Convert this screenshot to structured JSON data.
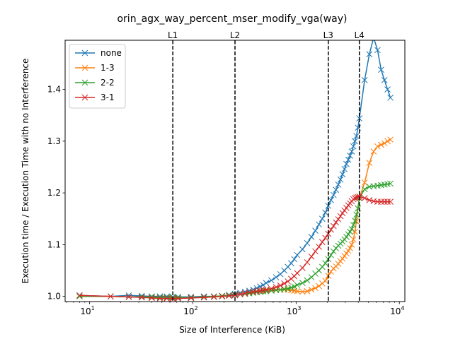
{
  "chart_data": {
    "type": "line",
    "title": "orin_agx_way_percent_mser_modify_vga(way)",
    "xlabel": "Size of Interference (KiB)",
    "ylabel": "Execution time / Execution Time with no Interference",
    "xscale": "log",
    "xlim": [
      5.8,
      11300
    ],
    "ylim": [
      0.99,
      1.495
    ],
    "x_major_ticks": [
      {
        "value": 10,
        "base": "10",
        "exp": "1"
      },
      {
        "value": 100,
        "base": "10",
        "exp": "2"
      },
      {
        "value": 1000,
        "base": "10",
        "exp": "3"
      },
      {
        "value": 10000,
        "base": "10",
        "exp": "4"
      }
    ],
    "y_ticks": [
      {
        "value": 1.0,
        "label": "1.0"
      },
      {
        "value": 1.1,
        "label": "1.1"
      },
      {
        "value": 1.2,
        "label": "1.2"
      },
      {
        "value": 1.3,
        "label": "1.3"
      },
      {
        "value": 1.4,
        "label": "1.4"
      }
    ],
    "grid": false,
    "legend_position": "top-left",
    "cache_levels": [
      {
        "label": "L1",
        "x": 64
      },
      {
        "label": "L2",
        "x": 256
      },
      {
        "label": "L3",
        "x": 2048
      },
      {
        "label": "L4",
        "x": 4096
      }
    ],
    "x": [
      8,
      16,
      24,
      32,
      40,
      48,
      56,
      64,
      72,
      96,
      128,
      160,
      192,
      224,
      256,
      288,
      320,
      352,
      384,
      416,
      448,
      480,
      512,
      576,
      640,
      704,
      768,
      832,
      896,
      960,
      1024,
      1152,
      1280,
      1408,
      1536,
      1664,
      1792,
      1920,
      2048,
      2176,
      2304,
      2432,
      2560,
      2688,
      2816,
      2944,
      3072,
      3200,
      3328,
      3456,
      3584,
      3712,
      3840,
      3968,
      4096,
      4608,
      5120,
      5632,
      6144,
      6656,
      7168,
      7680,
      8192
    ],
    "series": [
      {
        "name": "none",
        "color": "#1f77b4",
        "values": [
          1.002,
          1.0,
          1.002,
          1.001,
          1.0,
          1.0,
          1.0,
          0.999,
          0.999,
          0.999,
          1.0,
          1.0,
          1.001,
          1.003,
          1.005,
          1.007,
          1.009,
          1.011,
          1.013,
          1.016,
          1.019,
          1.022,
          1.026,
          1.031,
          1.037,
          1.043,
          1.05,
          1.057,
          1.064,
          1.072,
          1.08,
          1.091,
          1.103,
          1.115,
          1.127,
          1.139,
          1.15,
          1.162,
          1.175,
          1.186,
          1.196,
          1.206,
          1.216,
          1.226,
          1.236,
          1.246,
          1.256,
          1.264,
          1.272,
          1.28,
          1.29,
          1.3,
          1.31,
          1.326,
          1.344,
          1.418,
          1.468,
          1.5,
          1.476,
          1.438,
          1.418,
          1.4,
          1.384
        ]
      },
      {
        "name": "1-3",
        "color": "#ff7f0e",
        "values": [
          1.0,
          1.0,
          0.999,
          0.999,
          0.998,
          0.998,
          0.997,
          0.996,
          0.996,
          0.997,
          0.998,
          0.999,
          1.0,
          1.002,
          1.003,
          1.004,
          1.005,
          1.006,
          1.007,
          1.008,
          1.009,
          1.01,
          1.011,
          1.012,
          1.013,
          1.013,
          1.013,
          1.013,
          1.012,
          1.011,
          1.01,
          1.009,
          1.01,
          1.013,
          1.016,
          1.02,
          1.025,
          1.03,
          1.04,
          1.048,
          1.054,
          1.058,
          1.063,
          1.068,
          1.073,
          1.078,
          1.083,
          1.088,
          1.093,
          1.1,
          1.11,
          1.125,
          1.145,
          1.17,
          1.19,
          1.22,
          1.258,
          1.28,
          1.29,
          1.293,
          1.296,
          1.3,
          1.303
        ]
      },
      {
        "name": "2-2",
        "color": "#2ca02c",
        "values": [
          1.0,
          1.0,
          0.999,
          0.999,
          0.999,
          0.998,
          0.998,
          0.998,
          0.998,
          0.998,
          0.999,
          1.0,
          1.001,
          1.002,
          1.003,
          1.004,
          1.005,
          1.006,
          1.007,
          1.008,
          1.009,
          1.01,
          1.01,
          1.011,
          1.012,
          1.013,
          1.014,
          1.015,
          1.017,
          1.019,
          1.022,
          1.026,
          1.031,
          1.037,
          1.044,
          1.05,
          1.057,
          1.064,
          1.072,
          1.08,
          1.087,
          1.093,
          1.098,
          1.102,
          1.106,
          1.11,
          1.115,
          1.12,
          1.125,
          1.13,
          1.138,
          1.146,
          1.158,
          1.17,
          1.19,
          1.207,
          1.212,
          1.213,
          1.214,
          1.215,
          1.216,
          1.217,
          1.218
        ]
      },
      {
        "name": "3-1",
        "color": "#d62728",
        "values": [
          1.002,
          1.0,
          0.999,
          0.998,
          0.997,
          0.996,
          0.996,
          0.996,
          0.996,
          0.997,
          0.998,
          0.999,
          1.0,
          1.001,
          1.002,
          1.004,
          1.006,
          1.008,
          1.009,
          1.01,
          1.011,
          1.012,
          1.013,
          1.015,
          1.018,
          1.021,
          1.025,
          1.029,
          1.034,
          1.039,
          1.045,
          1.055,
          1.066,
          1.077,
          1.087,
          1.096,
          1.105,
          1.113,
          1.121,
          1.129,
          1.136,
          1.143,
          1.149,
          1.155,
          1.161,
          1.166,
          1.171,
          1.176,
          1.18,
          1.184,
          1.188,
          1.19,
          1.191,
          1.192,
          1.193,
          1.19,
          1.186,
          1.184,
          1.183,
          1.183,
          1.183,
          1.183,
          1.183
        ]
      }
    ]
  }
}
